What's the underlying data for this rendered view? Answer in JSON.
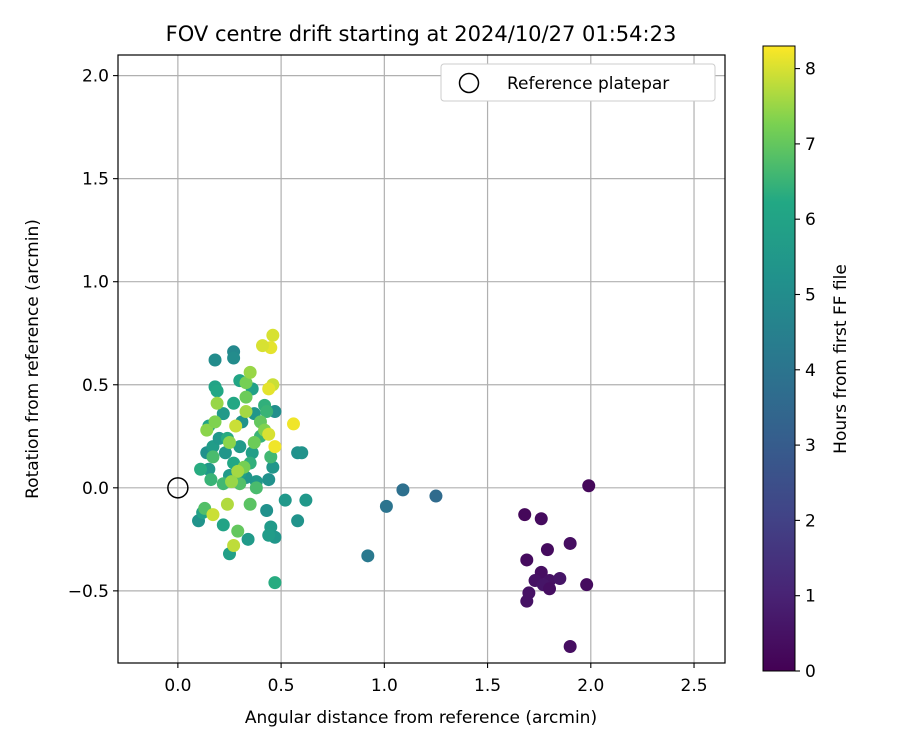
{
  "chart_data": {
    "type": "scatter",
    "title": "FOV centre drift starting at 2024/10/27 01:54:23",
    "xlabel": "Angular distance from reference (arcmin)",
    "ylabel": "Rotation from reference (arcmin)",
    "xlim": [
      -0.29,
      2.65
    ],
    "ylim": [
      -0.85,
      2.1
    ],
    "xticks": [
      0.0,
      0.5,
      1.0,
      1.5,
      2.0,
      2.5
    ],
    "xtick_labels": [
      "0.0",
      "0.5",
      "1.0",
      "1.5",
      "2.0",
      "2.5"
    ],
    "yticks": [
      -0.5,
      0.0,
      0.5,
      1.0,
      1.5,
      2.0
    ],
    "ytick_labels": [
      "−0.5",
      "0.0",
      "0.5",
      "1.0",
      "1.5",
      "2.0"
    ],
    "grid": true,
    "legend": {
      "placement": "top-right",
      "entries": [
        "Reference platepar"
      ]
    },
    "reference_point": {
      "x": 0.0,
      "y": 0.0,
      "label": "Reference platepar"
    },
    "colorbar": {
      "label": "Hours from first FF file",
      "colormap": "viridis",
      "range": [
        0,
        8.3
      ],
      "ticks": [
        0,
        1,
        2,
        3,
        4,
        5,
        6,
        7,
        8
      ],
      "tick_labels": [
        "0",
        "1",
        "2",
        "3",
        "4",
        "5",
        "6",
        "7",
        "8"
      ]
    },
    "points": [
      {
        "x": 1.99,
        "y": 0.01,
        "h": 0.2
      },
      {
        "x": 1.68,
        "y": -0.13,
        "h": 0.2
      },
      {
        "x": 1.76,
        "y": -0.15,
        "h": 0.3
      },
      {
        "x": 1.79,
        "y": -0.3,
        "h": 0.3
      },
      {
        "x": 1.9,
        "y": -0.27,
        "h": 0.4
      },
      {
        "x": 1.69,
        "y": -0.35,
        "h": 0.3
      },
      {
        "x": 1.76,
        "y": -0.41,
        "h": 0.4
      },
      {
        "x": 1.73,
        "y": -0.45,
        "h": 0.5
      },
      {
        "x": 1.8,
        "y": -0.45,
        "h": 0.5
      },
      {
        "x": 1.85,
        "y": -0.44,
        "h": 0.6
      },
      {
        "x": 1.98,
        "y": -0.47,
        "h": 0.3
      },
      {
        "x": 1.77,
        "y": -0.47,
        "h": 0.6
      },
      {
        "x": 1.8,
        "y": -0.49,
        "h": 0.4
      },
      {
        "x": 1.7,
        "y": -0.51,
        "h": 0.5
      },
      {
        "x": 1.69,
        "y": -0.55,
        "h": 0.5
      },
      {
        "x": 1.9,
        "y": -0.77,
        "h": 0.4
      },
      {
        "x": 1.09,
        "y": -0.01,
        "h": 3.8
      },
      {
        "x": 1.25,
        "y": -0.04,
        "h": 3.6
      },
      {
        "x": 1.01,
        "y": -0.09,
        "h": 4.0
      },
      {
        "x": 0.92,
        "y": -0.33,
        "h": 4.2
      },
      {
        "x": 0.18,
        "y": 0.62,
        "h": 5.0
      },
      {
        "x": 0.27,
        "y": 0.66,
        "h": 4.8
      },
      {
        "x": 0.27,
        "y": 0.63,
        "h": 5.0
      },
      {
        "x": 0.47,
        "y": 0.37,
        "h": 5.1
      },
      {
        "x": 0.58,
        "y": 0.17,
        "h": 5.2
      },
      {
        "x": 0.6,
        "y": 0.17,
        "h": 5.3
      },
      {
        "x": 0.46,
        "y": 0.1,
        "h": 5.4
      },
      {
        "x": 0.52,
        "y": -0.06,
        "h": 5.5
      },
      {
        "x": 0.62,
        "y": -0.06,
        "h": 5.5
      },
      {
        "x": 0.58,
        "y": -0.16,
        "h": 5.3
      },
      {
        "x": 0.43,
        "y": -0.11,
        "h": 5.2
      },
      {
        "x": 0.45,
        "y": -0.19,
        "h": 5.6
      },
      {
        "x": 0.47,
        "y": -0.24,
        "h": 5.4
      },
      {
        "x": 0.44,
        "y": -0.23,
        "h": 5.7
      },
      {
        "x": 0.34,
        "y": -0.25,
        "h": 5.6
      },
      {
        "x": 0.25,
        "y": -0.32,
        "h": 5.8
      },
      {
        "x": 0.1,
        "y": -0.16,
        "h": 5.3
      },
      {
        "x": 0.12,
        "y": -0.12,
        "h": 5.9
      },
      {
        "x": 0.22,
        "y": -0.18,
        "h": 6.0
      },
      {
        "x": 0.47,
        "y": -0.46,
        "h": 6.3
      },
      {
        "x": 0.44,
        "y": 0.04,
        "h": 5.2
      },
      {
        "x": 0.38,
        "y": 0.03,
        "h": 5.5
      },
      {
        "x": 0.33,
        "y": 0.05,
        "h": 5.4
      },
      {
        "x": 0.25,
        "y": 0.06,
        "h": 5.6
      },
      {
        "x": 0.3,
        "y": 0.07,
        "h": 5.8
      },
      {
        "x": 0.15,
        "y": 0.09,
        "h": 5.5
      },
      {
        "x": 0.11,
        "y": 0.09,
        "h": 6.3
      },
      {
        "x": 0.14,
        "y": 0.17,
        "h": 5.2
      },
      {
        "x": 0.17,
        "y": 0.2,
        "h": 5.7
      },
      {
        "x": 0.23,
        "y": 0.17,
        "h": 5.4
      },
      {
        "x": 0.2,
        "y": 0.24,
        "h": 5.5
      },
      {
        "x": 0.3,
        "y": 0.2,
        "h": 5.6
      },
      {
        "x": 0.36,
        "y": 0.17,
        "h": 5.8
      },
      {
        "x": 0.31,
        "y": 0.32,
        "h": 5.3
      },
      {
        "x": 0.37,
        "y": 0.36,
        "h": 5.4
      },
      {
        "x": 0.22,
        "y": 0.36,
        "h": 5.6
      },
      {
        "x": 0.18,
        "y": 0.49,
        "h": 6.0
      },
      {
        "x": 0.19,
        "y": 0.47,
        "h": 6.2
      },
      {
        "x": 0.3,
        "y": 0.52,
        "h": 6.1
      },
      {
        "x": 0.36,
        "y": 0.48,
        "h": 5.9
      },
      {
        "x": 0.27,
        "y": 0.41,
        "h": 6.2
      },
      {
        "x": 0.42,
        "y": 0.4,
        "h": 6.4
      },
      {
        "x": 0.43,
        "y": 0.37,
        "h": 6.5
      },
      {
        "x": 0.15,
        "y": 0.3,
        "h": 6.0
      },
      {
        "x": 0.24,
        "y": 0.24,
        "h": 6.3
      },
      {
        "x": 0.4,
        "y": 0.25,
        "h": 6.5
      },
      {
        "x": 0.45,
        "y": 0.15,
        "h": 6.6
      },
      {
        "x": 0.35,
        "y": 0.12,
        "h": 6.4
      },
      {
        "x": 0.27,
        "y": 0.12,
        "h": 6.2
      },
      {
        "x": 0.17,
        "y": 0.15,
        "h": 6.7
      },
      {
        "x": 0.16,
        "y": 0.04,
        "h": 6.5
      },
      {
        "x": 0.22,
        "y": 0.02,
        "h": 6.6
      },
      {
        "x": 0.3,
        "y": 0.02,
        "h": 6.8
      },
      {
        "x": 0.38,
        "y": 0.0,
        "h": 6.7
      },
      {
        "x": 0.35,
        "y": -0.08,
        "h": 6.9
      },
      {
        "x": 0.13,
        "y": -0.1,
        "h": 6.8
      },
      {
        "x": 0.29,
        "y": -0.21,
        "h": 7.0
      },
      {
        "x": 0.33,
        "y": 0.51,
        "h": 7.2
      },
      {
        "x": 0.35,
        "y": 0.56,
        "h": 7.5
      },
      {
        "x": 0.33,
        "y": 0.44,
        "h": 7.1
      },
      {
        "x": 0.4,
        "y": 0.32,
        "h": 7.0
      },
      {
        "x": 0.42,
        "y": 0.28,
        "h": 7.3
      },
      {
        "x": 0.37,
        "y": 0.22,
        "h": 7.1
      },
      {
        "x": 0.25,
        "y": 0.22,
        "h": 7.4
      },
      {
        "x": 0.32,
        "y": 0.1,
        "h": 7.2
      },
      {
        "x": 0.14,
        "y": 0.28,
        "h": 7.4
      },
      {
        "x": 0.19,
        "y": 0.41,
        "h": 7.5
      },
      {
        "x": 0.18,
        "y": 0.32,
        "h": 7.3
      },
      {
        "x": 0.33,
        "y": 0.37,
        "h": 7.6
      },
      {
        "x": 0.29,
        "y": 0.08,
        "h": 7.6
      },
      {
        "x": 0.26,
        "y": 0.03,
        "h": 7.5
      },
      {
        "x": 0.24,
        "y": -0.08,
        "h": 7.7
      },
      {
        "x": 0.27,
        "y": -0.28,
        "h": 7.8
      },
      {
        "x": 0.17,
        "y": -0.13,
        "h": 7.9
      },
      {
        "x": 0.46,
        "y": 0.74,
        "h": 8.0
      },
      {
        "x": 0.45,
        "y": 0.68,
        "h": 8.1
      },
      {
        "x": 0.41,
        "y": 0.69,
        "h": 8.0
      },
      {
        "x": 0.46,
        "y": 0.5,
        "h": 7.9
      },
      {
        "x": 0.44,
        "y": 0.48,
        "h": 8.1
      },
      {
        "x": 0.56,
        "y": 0.31,
        "h": 8.2
      },
      {
        "x": 0.44,
        "y": 0.26,
        "h": 8.0
      },
      {
        "x": 0.47,
        "y": 0.2,
        "h": 8.2
      },
      {
        "x": 0.28,
        "y": 0.3,
        "h": 7.9
      }
    ]
  }
}
